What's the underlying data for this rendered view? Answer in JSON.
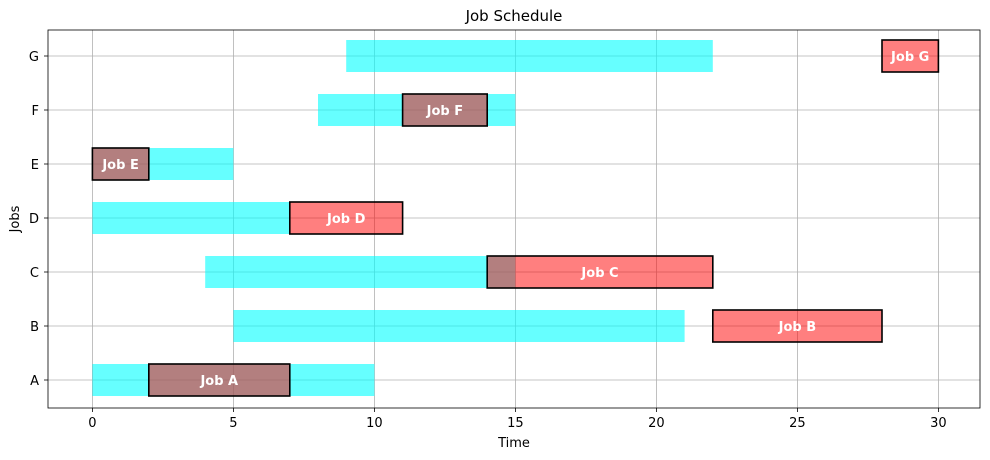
{
  "chart_data": {
    "type": "gantt",
    "title": "Job Schedule",
    "xlabel": "Time",
    "ylabel": "Jobs",
    "xlim": [
      -1.5,
      31.5
    ],
    "x_ticks": [
      0,
      5,
      10,
      15,
      20,
      25,
      30
    ],
    "categories": [
      "A",
      "B",
      "C",
      "D",
      "E",
      "F",
      "G"
    ],
    "grid": true,
    "colors": {
      "window": "#00ffff",
      "window_opacity": 0.6,
      "job": "#ff0000",
      "job_opacity": 0.5,
      "job_edge": "#000000"
    },
    "windows": [
      {
        "job": "A",
        "start": 0,
        "end": 10
      },
      {
        "job": "B",
        "start": 5,
        "end": 21
      },
      {
        "job": "C",
        "start": 4,
        "end": 15
      },
      {
        "job": "D",
        "start": 0,
        "end": 7
      },
      {
        "job": "E",
        "start": 0,
        "end": 5
      },
      {
        "job": "F",
        "start": 8,
        "end": 15
      },
      {
        "job": "G",
        "start": 9,
        "end": 22
      }
    ],
    "jobs": [
      {
        "job": "A",
        "label": "Job A",
        "start": 2,
        "end": 7
      },
      {
        "job": "B",
        "label": "Job B",
        "start": 22,
        "end": 28
      },
      {
        "job": "C",
        "label": "Job C",
        "start": 14,
        "end": 22
      },
      {
        "job": "D",
        "label": "Job D",
        "start": 7,
        "end": 11
      },
      {
        "job": "E",
        "label": "Job E",
        "start": 0,
        "end": 2
      },
      {
        "job": "F",
        "label": "Job F",
        "start": 11,
        "end": 14
      },
      {
        "job": "G",
        "label": "Job G",
        "start": 28,
        "end": 30
      }
    ]
  }
}
